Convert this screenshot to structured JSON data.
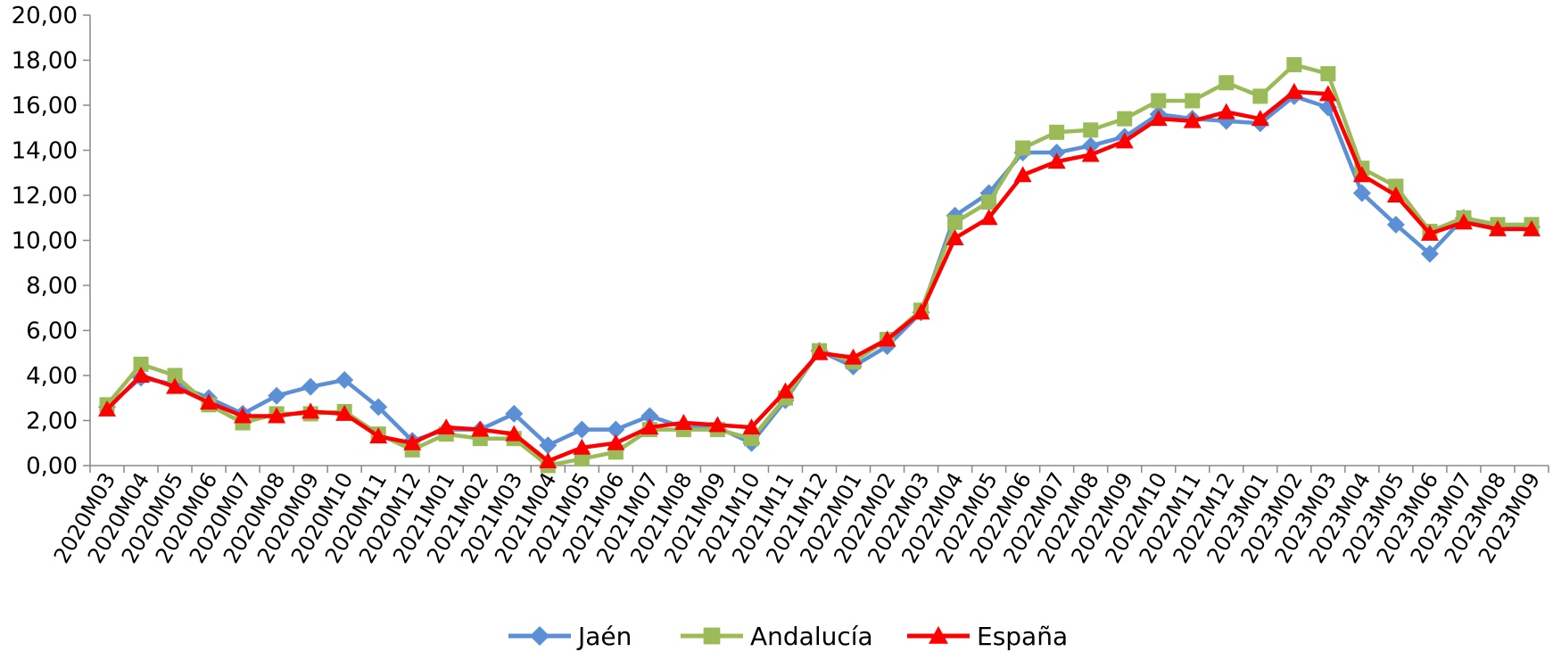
{
  "chart_data": {
    "type": "line",
    "title": "",
    "xlabel": "",
    "ylabel": "",
    "ylim": [
      0,
      20
    ],
    "y_tick_step": 2,
    "y_tick_labels": [
      "0,00",
      "2,00",
      "4,00",
      "6,00",
      "8,00",
      "10,00",
      "12,00",
      "14,00",
      "16,00",
      "18,00",
      "20,00"
    ],
    "grid": false,
    "legend_position": "bottom",
    "categories": [
      "2020M03",
      "2020M04",
      "2020M05",
      "2020M06",
      "2020M07",
      "2020M08",
      "2020M09",
      "2020M10",
      "2020M11",
      "2020M12",
      "2021M01",
      "2021M02",
      "2021M03",
      "2021M04",
      "2021M05",
      "2021M06",
      "2021M07",
      "2021M08",
      "2021M09",
      "2021M10",
      "2021M11",
      "2021M12",
      "2022M01",
      "2022M02",
      "2022M03",
      "2022M04",
      "2022M05",
      "2022M06",
      "2022M07",
      "2022M08",
      "2022M09",
      "2022M10",
      "2022M11",
      "2022M12",
      "2023M01",
      "2023M02",
      "2023M03",
      "2023M04",
      "2023M05",
      "2023M06",
      "2023M07",
      "2023M08",
      "2023M09"
    ],
    "series": [
      {
        "name": "Jaén",
        "color": "#5B8FD6",
        "marker": "diamond",
        "values": [
          2.6,
          3.9,
          3.6,
          3.0,
          2.3,
          3.1,
          3.5,
          3.8,
          2.6,
          1.1,
          1.6,
          1.6,
          2.3,
          0.9,
          1.6,
          1.6,
          2.2,
          1.7,
          1.7,
          1.0,
          2.9,
          5.1,
          4.4,
          5.3,
          6.8,
          11.1,
          12.1,
          13.9,
          13.9,
          14.2,
          14.6,
          15.6,
          15.4,
          15.3,
          15.2,
          16.4,
          15.9,
          12.1,
          10.7,
          9.4,
          11.0,
          10.6,
          10.6
        ]
      },
      {
        "name": "Andalucía",
        "color": "#9BBB59",
        "marker": "square",
        "values": [
          2.7,
          4.5,
          4.0,
          2.7,
          1.9,
          2.3,
          2.3,
          2.4,
          1.4,
          0.7,
          1.4,
          1.2,
          1.2,
          0.0,
          0.3,
          0.6,
          1.6,
          1.6,
          1.6,
          1.2,
          3.0,
          5.1,
          4.6,
          5.6,
          6.9,
          10.8,
          11.7,
          14.1,
          14.8,
          14.9,
          15.4,
          16.2,
          16.2,
          17.0,
          16.4,
          17.8,
          17.4,
          13.2,
          12.4,
          10.4,
          11.0,
          10.7,
          10.7
        ]
      },
      {
        "name": "España",
        "color": "#FF0000",
        "marker": "triangle",
        "values": [
          2.5,
          4.0,
          3.5,
          2.8,
          2.2,
          2.2,
          2.4,
          2.3,
          1.3,
          1.0,
          1.7,
          1.6,
          1.4,
          0.2,
          0.8,
          1.0,
          1.7,
          1.9,
          1.8,
          1.7,
          3.3,
          5.0,
          4.8,
          5.6,
          6.8,
          10.1,
          11.0,
          12.9,
          13.5,
          13.8,
          14.4,
          15.4,
          15.3,
          15.7,
          15.4,
          16.6,
          16.5,
          12.9,
          12.0,
          10.3,
          10.8,
          10.5,
          10.5
        ]
      }
    ]
  }
}
